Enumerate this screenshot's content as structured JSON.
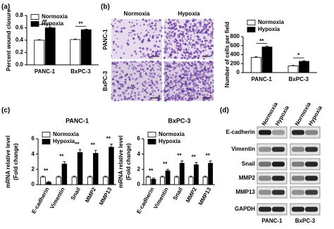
{
  "figure": {
    "panel_labels": [
      "(a)",
      "(b)",
      "(c)",
      "(d)"
    ],
    "micrograph_columns": [
      "Normoxia",
      "Hypoxia"
    ],
    "micrograph_rows": [
      "PANC-1",
      "BxPC-3"
    ],
    "blot_columns": [
      "Normoxia",
      "Hypoxia",
      "Normoxia",
      "Hypoxia"
    ],
    "blot_rows": [
      "E-cadherin",
      "Vimentin",
      "Snail",
      "MMP2",
      "MMP13",
      "GAPDH"
    ],
    "blot_cell_lines": [
      "PANC-1",
      "BxPC-3"
    ]
  },
  "chart_data": [
    {
      "type": "bar",
      "ylabel": "Percent wound closure",
      "categories": [
        "PANC-1",
        "BxPC-3"
      ],
      "series": [
        {
          "name": "Normoxia",
          "color": "#ffffff",
          "values": [
            0.4,
            0.41
          ],
          "errors": [
            0.01,
            0.01
          ]
        },
        {
          "name": "Hypoxia",
          "color": "#000000",
          "values": [
            0.6,
            0.57
          ],
          "errors": [
            0.01,
            0.01
          ]
        }
      ],
      "annotations": [
        "**",
        "**"
      ],
      "ylim": [
        0,
        0.8
      ],
      "yticks": [
        {
          "value": 0,
          "label": "0.0"
        },
        {
          "value": 0.2,
          "label": "0.2"
        },
        {
          "value": 0.4,
          "label": "0.4"
        },
        {
          "value": 0.6,
          "label": "0.6"
        },
        {
          "value": 0.8,
          "label": "0.8"
        }
      ],
      "legend": "upper left"
    },
    {
      "type": "bar",
      "ylabel": "Number of cells per field",
      "categories": [
        "PANC-1",
        "BxPC-3"
      ],
      "series": [
        {
          "name": "Normoxia",
          "color": "#ffffff",
          "values": [
            340,
            150
          ],
          "errors": [
            15,
            10
          ]
        },
        {
          "name": "Hypoxia",
          "color": "#000000",
          "values": [
            570,
            250
          ],
          "errors": [
            15,
            15
          ]
        }
      ],
      "annotations": [
        "**",
        "*"
      ],
      "ylim": [
        0,
        800
      ],
      "yticks": [
        0,
        200,
        400,
        600,
        800
      ],
      "legend": "upper left"
    },
    {
      "type": "bar",
      "title": "PANC-1",
      "ylabel": "mRNA relative level",
      "ylabel_sub": "(Fold change)",
      "categories": [
        "E-cadherin",
        "Vimentin",
        "Snail",
        "MMP2",
        "MMP13"
      ],
      "series": [
        {
          "name": "Normoxia",
          "color": "#ffffff",
          "values": [
            1,
            1,
            1,
            1,
            1
          ],
          "errors": [
            0.1,
            0.1,
            0.1,
            0.1,
            0.1
          ]
        },
        {
          "name": "Hypoxia",
          "color": "#000000",
          "values": [
            0.3,
            2.7,
            4.2,
            4.1,
            4.9
          ],
          "errors": [
            0.1,
            0.3,
            0.4,
            0.4,
            0.4
          ]
        }
      ],
      "annotations": [
        "**",
        "**",
        "**",
        "**",
        "**"
      ],
      "ylim": [
        0,
        6
      ],
      "yticks": [
        0,
        2,
        4,
        6
      ],
      "legend": "upper left"
    },
    {
      "type": "bar",
      "title": "BxPC-3",
      "ylabel": "mRNA relative level",
      "ylabel_sub": "(Fold change)",
      "categories": [
        "E-cadherin",
        "Vimentin",
        "Snail",
        "MMP2",
        "MMP13"
      ],
      "series": [
        {
          "name": "Normoxia",
          "color": "#ffffff",
          "values": [
            1,
            1,
            1,
            1,
            1
          ],
          "errors": [
            0.1,
            0.1,
            0.1,
            0.1,
            0.1
          ]
        },
        {
          "name": "Hypoxia",
          "color": "#000000",
          "values": [
            0.7,
            1.8,
            2.8,
            2.6,
            2.8
          ],
          "errors": [
            0.15,
            0.2,
            0.3,
            0.3,
            0.3
          ]
        }
      ],
      "annotations": [
        "**",
        "**",
        "**",
        "**",
        "**"
      ],
      "ylim": [
        0,
        6
      ],
      "yticks": [
        0,
        2,
        4,
        6
      ],
      "legend": "upper left"
    }
  ]
}
